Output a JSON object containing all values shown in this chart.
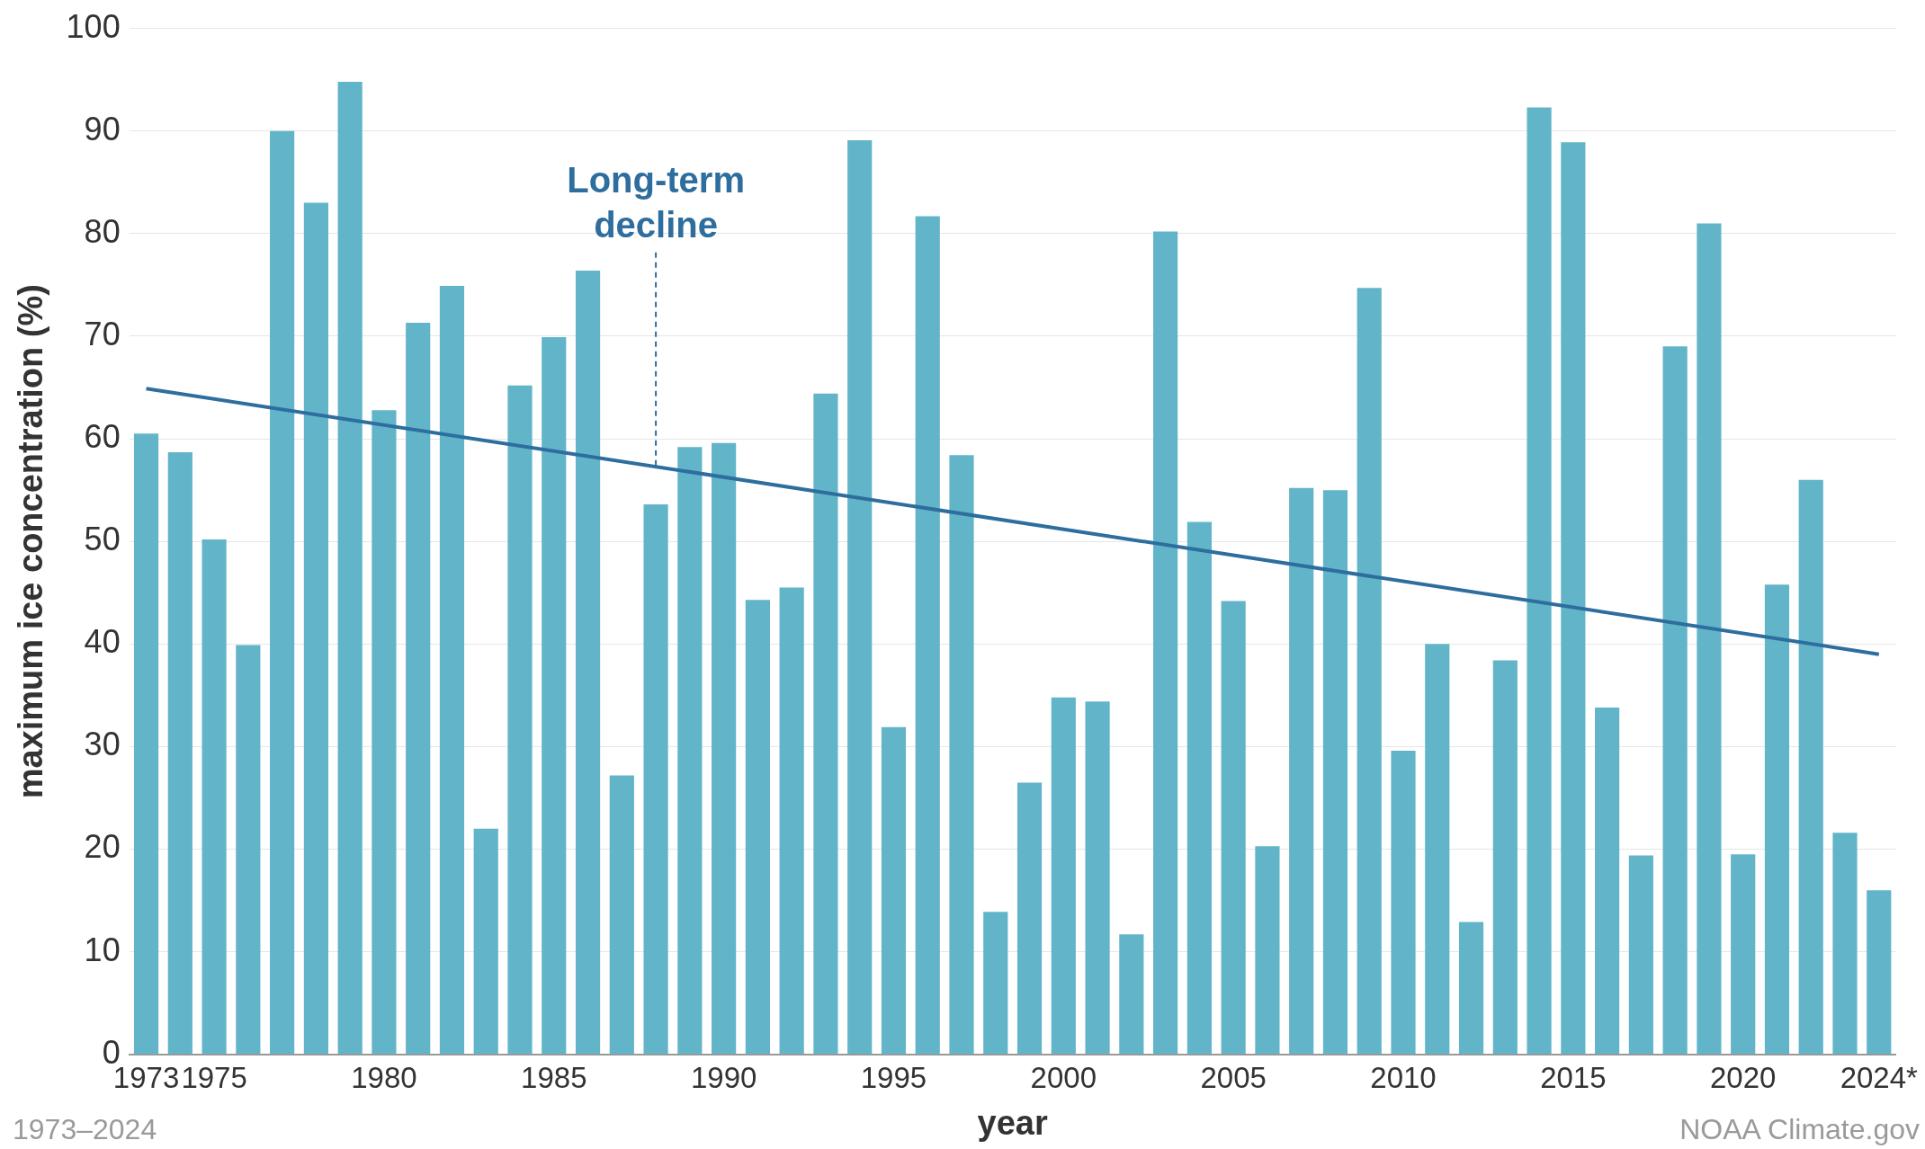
{
  "chart_data": {
    "type": "bar",
    "xlabel": "year",
    "ylabel": "maximum ice concentration (%)",
    "categories": [
      "1973",
      null,
      "1975",
      null,
      null,
      null,
      null,
      "1980",
      null,
      null,
      null,
      null,
      "1985",
      null,
      null,
      null,
      null,
      "1990",
      null,
      null,
      null,
      null,
      "1995",
      null,
      null,
      null,
      null,
      "2000",
      null,
      null,
      null,
      null,
      "2005",
      null,
      null,
      null,
      null,
      "2010",
      null,
      null,
      null,
      null,
      "2015",
      null,
      null,
      null,
      null,
      "2020",
      null,
      null,
      null,
      "2024*"
    ],
    "series": [
      {
        "color": "#62b5c9",
        "values": [
          60.5,
          58.7,
          50.2,
          39.9,
          90,
          83,
          94.8,
          62.8,
          71.3,
          74.9,
          22,
          65.2,
          69.9,
          76.4,
          27.2,
          53.6,
          59.2,
          59.6,
          44.3,
          45.5,
          64.4,
          89.1,
          31.9,
          81.7,
          58.4,
          13.9,
          26.5,
          34.8,
          34.4,
          11.7,
          80.2,
          51.9,
          44.2,
          20.3,
          55.2,
          55,
          74.7,
          29.6,
          40,
          12.9,
          38.4,
          92.3,
          88.9,
          33.8,
          19.4,
          69,
          81,
          19.5,
          45.8,
          56,
          21.6,
          16
        ]
      },
      {
        "type": "line",
        "color": "#2e6e9e",
        "values": [
          64.9,
          null,
          null,
          null,
          null,
          null,
          null,
          null,
          null,
          null,
          null,
          null,
          null,
          null,
          null,
          null,
          null,
          null,
          null,
          null,
          null,
          null,
          null,
          null,
          null,
          null,
          null,
          null,
          null,
          null,
          null,
          null,
          null,
          null,
          null,
          null,
          null,
          null,
          null,
          null,
          null,
          null,
          null,
          null,
          null,
          null,
          null,
          null,
          null,
          null,
          null,
          39.0
        ]
      }
    ],
    "ylim": [
      0,
      100
    ],
    "yticks": [
      0,
      10,
      20,
      30,
      40,
      50,
      60,
      70,
      80,
      90,
      100
    ],
    "grid": "y",
    "legend": false,
    "marker": "none",
    "annotations": [
      {
        "text": "Long-term decline",
        "y": 57.3
      },
      "1973–2024",
      "NOAA Climate.gov"
    ]
  }
}
